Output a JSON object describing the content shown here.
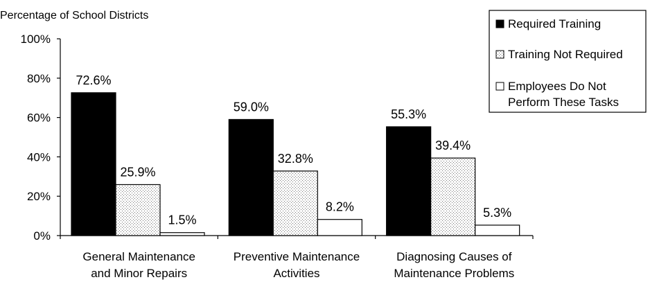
{
  "chart_data": {
    "type": "bar",
    "ylabel": "Percentage of School Districts",
    "ylim": [
      0,
      100
    ],
    "yticks": [
      "0%",
      "20%",
      "40%",
      "60%",
      "80%",
      "100%"
    ],
    "categories": [
      [
        "General Maintenance",
        "and Minor Repairs"
      ],
      [
        "Preventive Maintenance",
        "Activities"
      ],
      [
        "Diagnosing Causes of",
        "Maintenance Problems"
      ]
    ],
    "series": [
      {
        "name": "Required Training",
        "values": [
          72.6,
          59.0,
          55.3
        ],
        "labels": [
          "72.6%",
          "59.0%",
          "55.3%"
        ],
        "fill": "solid-black"
      },
      {
        "name": "Training Not Required",
        "values": [
          25.9,
          32.8,
          39.4
        ],
        "labels": [
          "25.9%",
          "32.8%",
          "39.4%"
        ],
        "fill": "dotted"
      },
      {
        "name": "Employees Do Not Perform These Tasks",
        "legend_lines": [
          "Employees Do Not",
          "Perform These Tasks"
        ],
        "values": [
          1.5,
          8.2,
          5.3
        ],
        "labels": [
          "1.5%",
          "8.2%",
          "5.3%"
        ],
        "fill": "white"
      }
    ],
    "grid": false,
    "legend": "top-right"
  },
  "colors": {
    "black": "#000000",
    "white": "#ffffff",
    "dot": "#6e6e6e"
  }
}
